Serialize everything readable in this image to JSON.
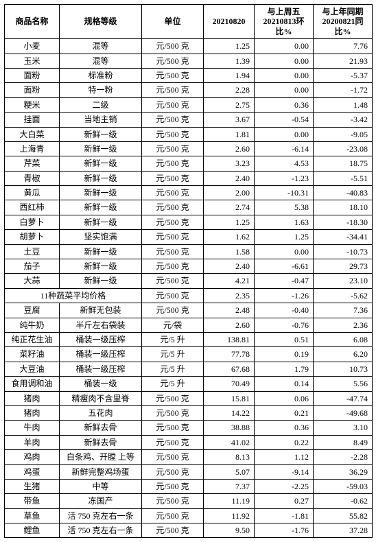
{
  "header": {
    "name": "商品名称",
    "spec": "规格等级",
    "unit": "单位",
    "date": "20210820",
    "wow": "与上周五20210813环比%",
    "yoy": "与上年同期20200821同比%"
  },
  "avg_label": "11种蔬菜平均价格",
  "avg": {
    "unit": "元/500 克",
    "price": "2.35",
    "wow": "-1.26",
    "yoy": "-5.62"
  },
  "rows": [
    {
      "name": "小麦",
      "spec": "混等",
      "unit": "元/500 克",
      "price": "1.25",
      "wow": "0.00",
      "yoy": "7.76"
    },
    {
      "name": "玉米",
      "spec": "混等",
      "unit": "元/500 克",
      "price": "1.39",
      "wow": "0.00",
      "yoy": "21.93"
    },
    {
      "name": "面粉",
      "spec": "标准粉",
      "unit": "元/500 克",
      "price": "1.94",
      "wow": "0.00",
      "yoy": "-5.37"
    },
    {
      "name": "面粉",
      "spec": "特一粉",
      "unit": "元/500 克",
      "price": "2.28",
      "wow": "0.00",
      "yoy": "-1.72"
    },
    {
      "name": "粳米",
      "spec": "二级",
      "unit": "元/500 克",
      "price": "2.75",
      "wow": "0.36",
      "yoy": "1.48"
    },
    {
      "name": "挂面",
      "spec": "当地主销",
      "unit": "元/500 克",
      "price": "3.67",
      "wow": "-0.54",
      "yoy": "-3.42"
    },
    {
      "name": "大白菜",
      "spec": "新鲜一级",
      "unit": "元/500 克",
      "price": "1.81",
      "wow": "0.00",
      "yoy": "-9.05"
    },
    {
      "name": "上海青",
      "spec": "新鲜一级",
      "unit": "元/500 克",
      "price": "2.60",
      "wow": "-6.14",
      "yoy": "-23.08"
    },
    {
      "name": "芹菜",
      "spec": "新鲜一级",
      "unit": "元/500 克",
      "price": "3.23",
      "wow": "4.53",
      "yoy": "18.75"
    },
    {
      "name": "青椒",
      "spec": "新鲜一级",
      "unit": "元/500 克",
      "price": "2.40",
      "wow": "-1.23",
      "yoy": "-5.51"
    },
    {
      "name": "黄瓜",
      "spec": "新鲜一级",
      "unit": "元/500 克",
      "price": "2.00",
      "wow": "-10.31",
      "yoy": "-40.83"
    },
    {
      "name": "西红柿",
      "spec": "新鲜一级",
      "unit": "元/500 克",
      "price": "2.74",
      "wow": "5.38",
      "yoy": "18.10"
    },
    {
      "name": "白萝卜",
      "spec": "新鲜一级",
      "unit": "元/500 克",
      "price": "1.25",
      "wow": "1.63",
      "yoy": "-18.30"
    },
    {
      "name": "胡萝卜",
      "spec": "坚实饱满",
      "unit": "元/500 克",
      "price": "1.62",
      "wow": "1.25",
      "yoy": "-34.41"
    },
    {
      "name": "土豆",
      "spec": "新鲜一级",
      "unit": "元/500 克",
      "price": "1.58",
      "wow": "0.00",
      "yoy": "-10.73"
    },
    {
      "name": "茄子",
      "spec": "新鲜一级",
      "unit": "元/500 克",
      "price": "2.40",
      "wow": "-6.61",
      "yoy": "29.73"
    },
    {
      "name": "大蒜",
      "spec": "新鲜一级",
      "unit": "元/500 克",
      "price": "4.21",
      "wow": "-0.47",
      "yoy": "23.10"
    }
  ],
  "rows2": [
    {
      "name": "豆腐",
      "spec": "新鲜无包装",
      "unit": "元/500 克",
      "price": "2.48",
      "wow": "-0.40",
      "yoy": "7.36"
    },
    {
      "name": "纯牛奶",
      "spec": "半斤左右袋装",
      "unit": "元/袋",
      "price": "2.60",
      "wow": "-0.76",
      "yoy": "2.36"
    },
    {
      "name": "纯正花生油",
      "spec": "桶装一级压榨",
      "unit": "元/5 升",
      "price": "138.81",
      "wow": "0.51",
      "yoy": "6.08"
    },
    {
      "name": "菜籽油",
      "spec": "桶装一级压榨",
      "unit": "元/5 升",
      "price": "77.78",
      "wow": "0.19",
      "yoy": "6.20"
    },
    {
      "name": "大豆油",
      "spec": "桶装一级压榨",
      "unit": "元/5 升",
      "price": "67.68",
      "wow": "1.79",
      "yoy": "10.73"
    },
    {
      "name": "食用调和油",
      "spec": "桶装一级",
      "unit": "元/5 升",
      "price": "70.49",
      "wow": "0.14",
      "yoy": "5.56"
    },
    {
      "name": "猪肉",
      "spec": "精瘦肉不含里脊",
      "unit": "元/500 克",
      "price": "15.81",
      "wow": "0.06",
      "yoy": "-47.74"
    },
    {
      "name": "猪肉",
      "spec": "五花肉",
      "unit": "元/500 克",
      "price": "14.22",
      "wow": "0.21",
      "yoy": "-49.68"
    },
    {
      "name": "牛肉",
      "spec": "新鲜去骨",
      "unit": "元/500 克",
      "price": "38.88",
      "wow": "0.36",
      "yoy": "3.10"
    },
    {
      "name": "羊肉",
      "spec": "新鲜去骨",
      "unit": "元/500 克",
      "price": "41.02",
      "wow": "0.22",
      "yoy": "8.49"
    },
    {
      "name": "鸡肉",
      "spec": "白条鸡、开膛 上等",
      "unit": "元/500 克",
      "price": "8.13",
      "wow": "1.12",
      "yoy": "-2.28"
    },
    {
      "name": "鸡蛋",
      "spec": "新鲜完整鸡场蛋",
      "unit": "元/500 克",
      "price": "5.07",
      "wow": "-9.14",
      "yoy": "36.29"
    },
    {
      "name": "生猪",
      "spec": "中等",
      "unit": "元/500 克",
      "price": "7.37",
      "wow": "-2.25",
      "yoy": "-59.03"
    },
    {
      "name": "带鱼",
      "spec": "冻国产",
      "unit": "元/500 克",
      "price": "11.19",
      "wow": "0.27",
      "yoy": "-0.62"
    },
    {
      "name": "草鱼",
      "spec": "活 750 克左右一条",
      "unit": "元/500 克",
      "price": "11.92",
      "wow": "-1.81",
      "yoy": "55.82"
    },
    {
      "name": "鲤鱼",
      "spec": "活 750 克左右一条",
      "unit": "元/500 克",
      "price": "9.50",
      "wow": "-1.76",
      "yoy": "37.28"
    }
  ]
}
